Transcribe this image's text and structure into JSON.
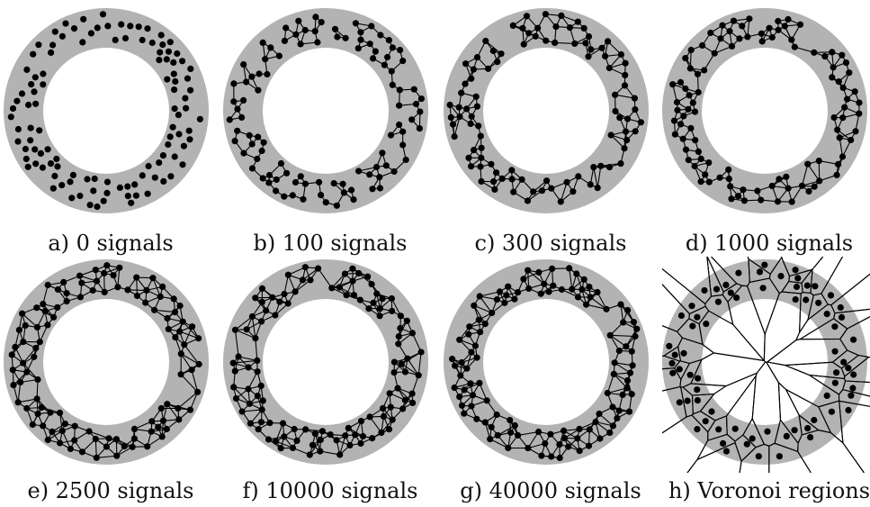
{
  "figure": {
    "ring_color": "#b3b3b3",
    "node_color": "#000000",
    "edge_color": "#000000",
    "panels": [
      {
        "caption": "a) 0 signals",
        "kind": "nodes"
      },
      {
        "caption": "b) 100 signals",
        "kind": "sparse-graph"
      },
      {
        "caption": "c) 300 signals",
        "kind": "graph"
      },
      {
        "caption": "d) 1000 signals",
        "kind": "graph"
      },
      {
        "caption": "e) 2500 signals",
        "kind": "dense-graph"
      },
      {
        "caption": "f) 10000 signals",
        "kind": "dense-graph"
      },
      {
        "caption": "g) 40000 signals",
        "kind": "dense-graph"
      },
      {
        "caption": "h) Voronoi regions",
        "kind": "voronoi"
      }
    ]
  }
}
